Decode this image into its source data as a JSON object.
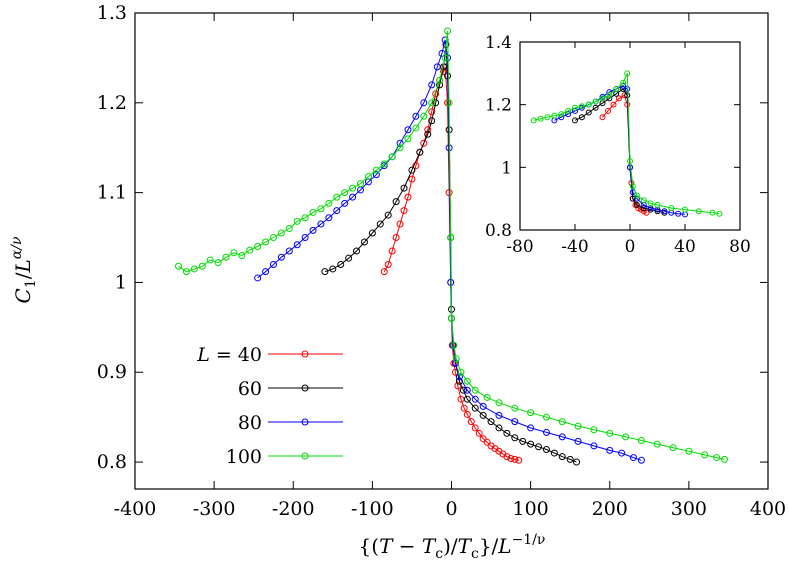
{
  "chart_data": [
    {
      "type": "scatter",
      "xlabel": "{(T − Tc)/Tc}/L^(−1/ν)",
      "ylabel": "C1/L^(α/ν)",
      "xlim": [
        -400,
        400
      ],
      "ylim": [
        0.77,
        1.3
      ],
      "xticks": [
        "-400",
        "-300",
        "-200",
        "-100",
        "0",
        "100",
        "200",
        "300",
        "400"
      ],
      "yticks": [
        "0.8",
        "0.9",
        "1",
        "1.1",
        "1.2",
        "1.3"
      ],
      "legend_title": "L =",
      "legend_position": "bottom-left",
      "series": [
        {
          "name": "40",
          "color": "#ff0000",
          "points": [
            [
              -85,
              1.012
            ],
            [
              -80,
              1.02
            ],
            [
              -75,
              1.035
            ],
            [
              -70,
              1.05
            ],
            [
              -65,
              1.065
            ],
            [
              -60,
              1.08
            ],
            [
              -55,
              1.095
            ],
            [
              -50,
              1.115
            ],
            [
              -45,
              1.13
            ],
            [
              -40,
              1.145
            ],
            [
              -35,
              1.155
            ],
            [
              -30,
              1.17
            ],
            [
              -25,
              1.19
            ],
            [
              -20,
              1.21
            ],
            [
              -15,
              1.225
            ],
            [
              -10,
              1.235
            ],
            [
              -8,
              1.24
            ],
            [
              -5,
              1.2
            ],
            [
              -3,
              1.1
            ],
            [
              -1,
              1.0
            ],
            [
              0,
              0.96
            ],
            [
              1,
              0.93
            ],
            [
              3,
              0.91
            ],
            [
              5,
              0.9
            ],
            [
              8,
              0.885
            ],
            [
              12,
              0.87
            ],
            [
              16,
              0.86
            ],
            [
              20,
              0.853
            ],
            [
              25,
              0.845
            ],
            [
              30,
              0.838
            ],
            [
              35,
              0.832
            ],
            [
              40,
              0.826
            ],
            [
              45,
              0.822
            ],
            [
              50,
              0.818
            ],
            [
              55,
              0.815
            ],
            [
              60,
              0.812
            ],
            [
              65,
              0.809
            ],
            [
              70,
              0.806
            ],
            [
              75,
              0.804
            ],
            [
              80,
              0.803
            ],
            [
              85,
              0.802
            ]
          ]
        },
        {
          "name": "60",
          "color": "#000000",
          "points": [
            [
              -160,
              1.012
            ],
            [
              -150,
              1.015
            ],
            [
              -140,
              1.02
            ],
            [
              -130,
              1.027
            ],
            [
              -120,
              1.035
            ],
            [
              -110,
              1.045
            ],
            [
              -100,
              1.055
            ],
            [
              -90,
              1.065
            ],
            [
              -80,
              1.075
            ],
            [
              -70,
              1.09
            ],
            [
              -60,
              1.105
            ],
            [
              -50,
              1.125
            ],
            [
              -40,
              1.145
            ],
            [
              -30,
              1.165
            ],
            [
              -25,
              1.18
            ],
            [
              -20,
              1.2
            ],
            [
              -15,
              1.22
            ],
            [
              -10,
              1.24
            ],
            [
              -7,
              1.265
            ],
            [
              -5,
              1.23
            ],
            [
              -3,
              1.17
            ],
            [
              -1,
              1.05
            ],
            [
              0,
              0.97
            ],
            [
              2,
              0.93
            ],
            [
              5,
              0.91
            ],
            [
              10,
              0.89
            ],
            [
              15,
              0.88
            ],
            [
              20,
              0.87
            ],
            [
              30,
              0.86
            ],
            [
              40,
              0.852
            ],
            [
              50,
              0.845
            ],
            [
              60,
              0.838
            ],
            [
              70,
              0.832
            ],
            [
              80,
              0.827
            ],
            [
              90,
              0.823
            ],
            [
              100,
              0.82
            ],
            [
              110,
              0.817
            ],
            [
              120,
              0.814
            ],
            [
              130,
              0.81
            ],
            [
              140,
              0.806
            ],
            [
              150,
              0.803
            ],
            [
              158,
              0.8
            ]
          ]
        },
        {
          "name": "80",
          "color": "#0000ff",
          "points": [
            [
              -245,
              1.005
            ],
            [
              -235,
              1.012
            ],
            [
              -225,
              1.02
            ],
            [
              -215,
              1.028
            ],
            [
              -205,
              1.035
            ],
            [
              -195,
              1.042
            ],
            [
              -185,
              1.05
            ],
            [
              -175,
              1.058
            ],
            [
              -165,
              1.065
            ],
            [
              -155,
              1.072
            ],
            [
              -145,
              1.08
            ],
            [
              -135,
              1.088
            ],
            [
              -125,
              1.095
            ],
            [
              -115,
              1.103
            ],
            [
              -105,
              1.112
            ],
            [
              -95,
              1.12
            ],
            [
              -85,
              1.13
            ],
            [
              -75,
              1.14
            ],
            [
              -65,
              1.155
            ],
            [
              -55,
              1.17
            ],
            [
              -45,
              1.185
            ],
            [
              -35,
              1.2
            ],
            [
              -25,
              1.22
            ],
            [
              -18,
              1.24
            ],
            [
              -12,
              1.255
            ],
            [
              -8,
              1.27
            ],
            [
              -5,
              1.25
            ],
            [
              -3,
              1.15
            ],
            [
              -1,
              1.0
            ],
            [
              0,
              0.96
            ],
            [
              2,
              0.93
            ],
            [
              5,
              0.91
            ],
            [
              10,
              0.895
            ],
            [
              20,
              0.88
            ],
            [
              30,
              0.87
            ],
            [
              40,
              0.862
            ],
            [
              60,
              0.852
            ],
            [
              80,
              0.845
            ],
            [
              100,
              0.838
            ],
            [
              120,
              0.833
            ],
            [
              140,
              0.828
            ],
            [
              160,
              0.823
            ],
            [
              180,
              0.818
            ],
            [
              200,
              0.813
            ],
            [
              215,
              0.81
            ],
            [
              230,
              0.805
            ],
            [
              240,
              0.802
            ]
          ]
        },
        {
          "name": "100",
          "color": "#00dd00",
          "points": [
            [
              -345,
              1.018
            ],
            [
              -335,
              1.012
            ],
            [
              -325,
              1.015
            ],
            [
              -315,
              1.018
            ],
            [
              -305,
              1.025
            ],
            [
              -295,
              1.022
            ],
            [
              -285,
              1.028
            ],
            [
              -275,
              1.033
            ],
            [
              -265,
              1.03
            ],
            [
              -255,
              1.036
            ],
            [
              -245,
              1.04
            ],
            [
              -235,
              1.045
            ],
            [
              -225,
              1.05
            ],
            [
              -215,
              1.055
            ],
            [
              -205,
              1.06
            ],
            [
              -195,
              1.068
            ],
            [
              -185,
              1.072
            ],
            [
              -175,
              1.078
            ],
            [
              -165,
              1.082
            ],
            [
              -155,
              1.088
            ],
            [
              -145,
              1.095
            ],
            [
              -135,
              1.1
            ],
            [
              -125,
              1.105
            ],
            [
              -115,
              1.11
            ],
            [
              -105,
              1.118
            ],
            [
              -95,
              1.125
            ],
            [
              -85,
              1.132
            ],
            [
              -75,
              1.14
            ],
            [
              -65,
              1.15
            ],
            [
              -55,
              1.16
            ],
            [
              -45,
              1.172
            ],
            [
              -35,
              1.185
            ],
            [
              -25,
              1.2
            ],
            [
              -15,
              1.225
            ],
            [
              -8,
              1.25
            ],
            [
              -5,
              1.28
            ],
            [
              -3,
              1.2
            ],
            [
              -1,
              1.05
            ],
            [
              0,
              0.96
            ],
            [
              3,
              0.93
            ],
            [
              6,
              0.915
            ],
            [
              12,
              0.9
            ],
            [
              20,
              0.89
            ],
            [
              30,
              0.88
            ],
            [
              45,
              0.872
            ],
            [
              60,
              0.866
            ],
            [
              80,
              0.86
            ],
            [
              100,
              0.855
            ],
            [
              120,
              0.85
            ],
            [
              140,
              0.845
            ],
            [
              160,
              0.84
            ],
            [
              180,
              0.836
            ],
            [
              200,
              0.832
            ],
            [
              220,
              0.828
            ],
            [
              240,
              0.824
            ],
            [
              260,
              0.82
            ],
            [
              280,
              0.816
            ],
            [
              300,
              0.812
            ],
            [
              320,
              0.808
            ],
            [
              335,
              0.805
            ],
            [
              345,
              0.803
            ]
          ]
        }
      ]
    },
    {
      "type": "scatter",
      "inset": true,
      "xlim": [
        -80,
        80
      ],
      "ylim": [
        0.8,
        1.4
      ],
      "xticks": [
        "-80",
        "-40",
        "0",
        "40",
        "80"
      ],
      "yticks": [
        "0.8",
        "1",
        "1.2",
        "1.4"
      ],
      "series": [
        {
          "name": "40",
          "color": "#ff0000",
          "points": [
            [
              -20,
              1.16
            ],
            [
              -16,
              1.18
            ],
            [
              -12,
              1.2
            ],
            [
              -8,
              1.22
            ],
            [
              -4,
              1.23
            ],
            [
              -2,
              1.2
            ],
            [
              0,
              1.0
            ],
            [
              1,
              0.95
            ],
            [
              2,
              0.9
            ],
            [
              4,
              0.88
            ],
            [
              6,
              0.87
            ],
            [
              8,
              0.865
            ],
            [
              10,
              0.86
            ],
            [
              12,
              0.855
            ]
          ]
        },
        {
          "name": "60",
          "color": "#000000",
          "points": [
            [
              -40,
              1.15
            ],
            [
              -35,
              1.16
            ],
            [
              -30,
              1.175
            ],
            [
              -25,
              1.19
            ],
            [
              -20,
              1.205
            ],
            [
              -15,
              1.22
            ],
            [
              -10,
              1.235
            ],
            [
              -5,
              1.25
            ],
            [
              -2,
              1.23
            ],
            [
              0,
              1.0
            ],
            [
              2,
              0.9
            ],
            [
              5,
              0.88
            ],
            [
              10,
              0.87
            ],
            [
              15,
              0.865
            ],
            [
              20,
              0.86
            ],
            [
              25,
              0.855
            ]
          ]
        },
        {
          "name": "80",
          "color": "#0000ff",
          "points": [
            [
              -55,
              1.15
            ],
            [
              -50,
              1.16
            ],
            [
              -45,
              1.17
            ],
            [
              -40,
              1.18
            ],
            [
              -35,
              1.19
            ],
            [
              -30,
              1.2
            ],
            [
              -25,
              1.21
            ],
            [
              -20,
              1.225
            ],
            [
              -15,
              1.24
            ],
            [
              -10,
              1.25
            ],
            [
              -5,
              1.26
            ],
            [
              -2,
              1.25
            ],
            [
              0,
              1.0
            ],
            [
              2,
              0.92
            ],
            [
              5,
              0.9
            ],
            [
              10,
              0.88
            ],
            [
              15,
              0.87
            ],
            [
              20,
              0.865
            ],
            [
              25,
              0.86
            ],
            [
              30,
              0.855
            ],
            [
              35,
              0.852
            ],
            [
              40,
              0.85
            ]
          ]
        },
        {
          "name": "100",
          "color": "#00dd00",
          "points": [
            [
              -70,
              1.15
            ],
            [
              -65,
              1.155
            ],
            [
              -60,
              1.16
            ],
            [
              -55,
              1.165
            ],
            [
              -50,
              1.17
            ],
            [
              -45,
              1.18
            ],
            [
              -40,
              1.19
            ],
            [
              -35,
              1.195
            ],
            [
              -30,
              1.2
            ],
            [
              -25,
              1.21
            ],
            [
              -20,
              1.22
            ],
            [
              -15,
              1.23
            ],
            [
              -10,
              1.25
            ],
            [
              -5,
              1.27
            ],
            [
              -2,
              1.3
            ],
            [
              0,
              1.02
            ],
            [
              2,
              0.94
            ],
            [
              5,
              0.91
            ],
            [
              10,
              0.895
            ],
            [
              15,
              0.885
            ],
            [
              20,
              0.88
            ],
            [
              30,
              0.87
            ],
            [
              40,
              0.865
            ],
            [
              50,
              0.86
            ],
            [
              60,
              0.855
            ],
            [
              65,
              0.852
            ]
          ]
        }
      ]
    }
  ]
}
